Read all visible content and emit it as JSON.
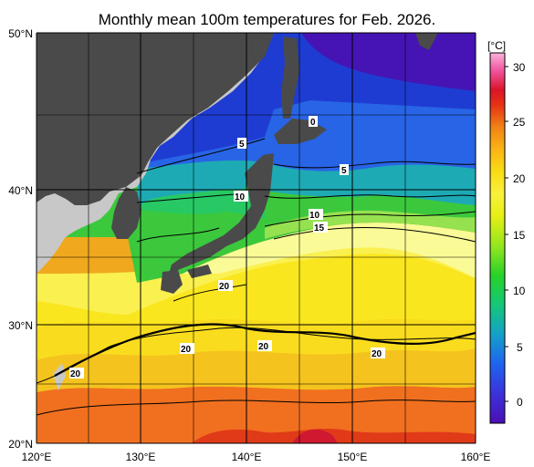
{
  "title": "Monthly mean 100m temperatures for Feb. 2026.",
  "map": {
    "x_axis_ticks": [
      "120°E",
      "130°E",
      "140°E",
      "150°E",
      "160°E"
    ],
    "y_axis_ticks": [
      "50°N",
      "40°N",
      "30°N",
      "20°N"
    ],
    "land_color": "#4a4a4a",
    "land_outer_color": "#c8c8c8",
    "grid_color": "#000000"
  },
  "colorbar": {
    "unit": "[°C]",
    "ticks": [
      "30",
      "25",
      "20",
      "15",
      "10",
      "5",
      "0"
    ],
    "colors": [
      "#4b0fb4",
      "#3c32dc",
      "#1e64f0",
      "#14a0c8",
      "#14c878",
      "#28d228",
      "#96e61e",
      "#e6f014",
      "#faf03c",
      "#fadc14",
      "#fab414",
      "#f08214",
      "#e63214",
      "#dc1428",
      "#f0509a",
      "#fab4dc"
    ]
  },
  "contour_labels": [
    "0",
    "5",
    "5",
    "10",
    "10",
    "15",
    "20",
    "20",
    "20",
    "20",
    "20"
  ]
}
